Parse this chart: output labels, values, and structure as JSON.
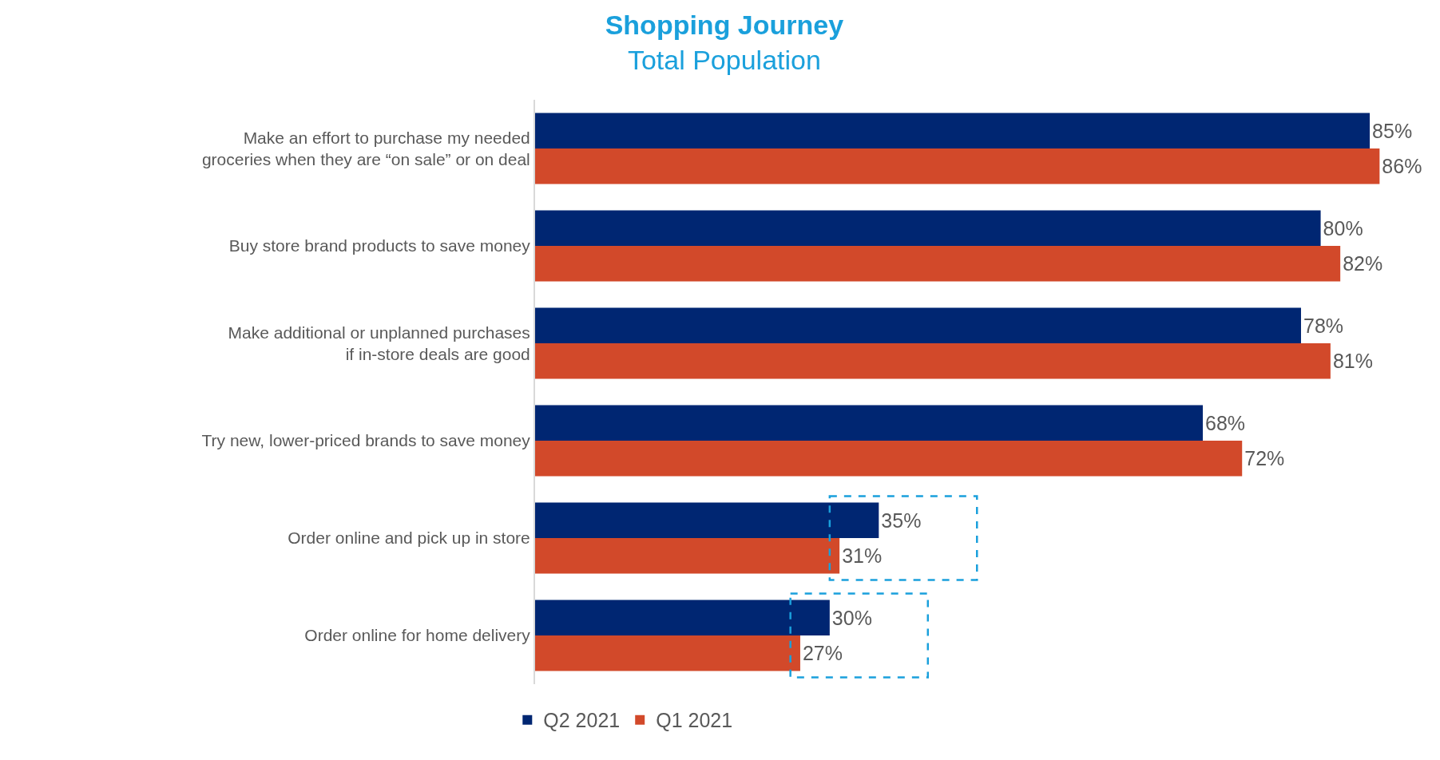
{
  "chart_data": {
    "type": "bar",
    "orientation": "horizontal",
    "title": "Shopping Journey",
    "subtitle": "Total Population",
    "categories": [
      "Make an effort to purchase my needed\ngroceries when they are “on sale” or on deal",
      "Buy store brand products to save money",
      "Make additional or unplanned purchases\nif in-store deals are good",
      "Try new, lower-priced brands to save money",
      "Order online and pick up in store",
      "Order online for home delivery"
    ],
    "series": [
      {
        "name": "Q2 2021",
        "color": "#002672",
        "values": [
          85,
          80,
          78,
          68,
          35,
          30
        ],
        "value_labels": [
          "85%",
          "80%",
          "78%",
          "68%",
          "35%",
          "30%"
        ]
      },
      {
        "name": "Q1 2021",
        "color": "#d2492a",
        "values": [
          86,
          82,
          81,
          72,
          31,
          27
        ],
        "value_labels": [
          "86%",
          "82%",
          "81%",
          "72%",
          "31%",
          "27%"
        ]
      }
    ],
    "tick_labels": "y",
    "legend": "bottom"
  }
}
